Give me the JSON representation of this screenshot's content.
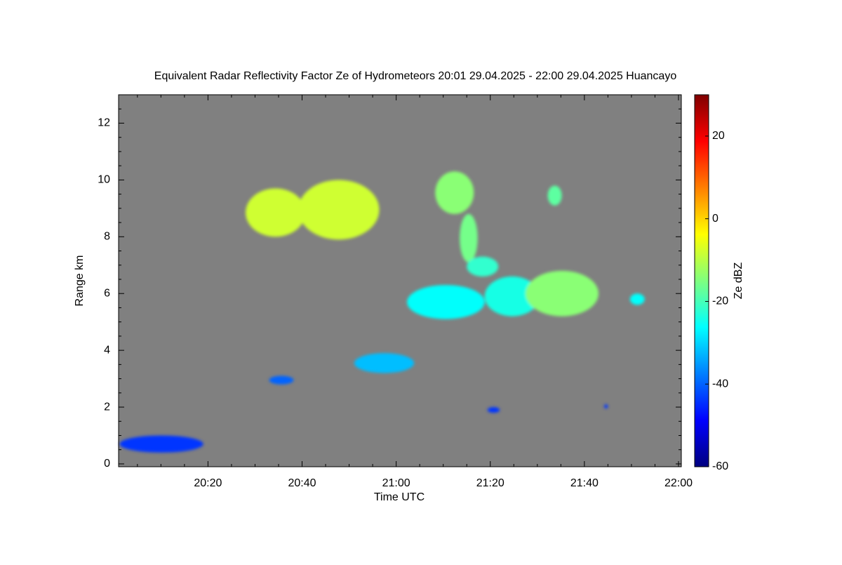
{
  "chart_data": {
    "type": "timeheight",
    "title": "Equivalent Radar Reflectivity Factor Ze of Hydrometeors   20:01 29.04.2025 - 22:00 29.04.2025 Huancayo",
    "xlabel": "Time UTC",
    "ylabel": "Range km",
    "colorbar_label": "Ze dBZ",
    "background": "#808080",
    "xlim": [
      1201,
      1320.6
    ],
    "xticks": [
      {
        "value": 1220,
        "label": "20:20"
      },
      {
        "value": 1240,
        "label": "20:40"
      },
      {
        "value": 1260,
        "label": "21:00"
      },
      {
        "value": 1280,
        "label": "21:20"
      },
      {
        "value": 1300,
        "label": "21:40"
      },
      {
        "value": 1320,
        "label": "22:00"
      }
    ],
    "xminorticks": [
      1205,
      1210,
      1215,
      1225,
      1230,
      1235,
      1245,
      1250,
      1255,
      1265,
      1270,
      1275,
      1285,
      1290,
      1295,
      1305,
      1310,
      1315
    ],
    "ylim": [
      -0.1,
      13
    ],
    "yticks": [
      0,
      2,
      4,
      6,
      8,
      10,
      12
    ],
    "yminorticks": [
      0.5,
      1,
      1.5,
      2.5,
      3,
      3.5,
      4.5,
      5,
      5.5,
      6.5,
      7,
      7.5,
      8.5,
      9,
      9.5,
      10.5,
      11,
      11.5,
      12.5
    ],
    "clim": [
      -60,
      30
    ],
    "cticks": [
      -60,
      -40,
      -20,
      0,
      20
    ],
    "colormap": [
      "#00007f",
      "#0000ff",
      "#007fff",
      "#00ffff",
      "#7fff7f",
      "#ffff00",
      "#ff7f00",
      "#ff0000",
      "#7f0000"
    ],
    "echoes": [
      {
        "t0": 1228.0,
        "t1": 1240.7,
        "r0": 8.0,
        "r1": 9.7,
        "ze": -8
      },
      {
        "t0": 1239.2,
        "t1": 1256.4,
        "r0": 7.9,
        "r1": 10.0,
        "ze": -8
      },
      {
        "t0": 1268.3,
        "t1": 1276.5,
        "r0": 8.8,
        "r1": 10.3,
        "ze": -14
      },
      {
        "t0": 1292.2,
        "t1": 1295.2,
        "r0": 9.1,
        "r1": 9.8,
        "ze": -18
      },
      {
        "t0": 1273.5,
        "t1": 1277.3,
        "r0": 7.1,
        "r1": 8.8,
        "ze": -16
      },
      {
        "t0": 1275.0,
        "t1": 1281.7,
        "r0": 6.6,
        "r1": 7.3,
        "ze": -22
      },
      {
        "t0": 1278.8,
        "t1": 1290.5,
        "r0": 5.2,
        "r1": 6.6,
        "ze": -24
      },
      {
        "t0": 1287.5,
        "t1": 1303.0,
        "r0": 5.2,
        "r1": 6.8,
        "ze": -14
      },
      {
        "t0": 1262.3,
        "t1": 1278.8,
        "r0": 5.1,
        "r1": 6.3,
        "ze": -26
      },
      {
        "t0": 1251.1,
        "t1": 1263.8,
        "r0": 3.2,
        "r1": 3.9,
        "ze": -32
      },
      {
        "t0": 1233.0,
        "t1": 1238.2,
        "r0": 2.8,
        "r1": 3.1,
        "ze": -40
      },
      {
        "t0": 1309.7,
        "t1": 1312.8,
        "r0": 5.6,
        "r1": 6.0,
        "ze": -26
      },
      {
        "t0": 1201.2,
        "t1": 1219.0,
        "r0": 0.4,
        "r1": 1.0,
        "ze": -44
      },
      {
        "t0": 1279.4,
        "t1": 1282.0,
        "r0": 1.8,
        "r1": 2.0,
        "ze": -44
      },
      {
        "t0": 1304.2,
        "t1": 1305.0,
        "r0": 1.95,
        "r1": 2.1,
        "ze": -44
      }
    ]
  }
}
